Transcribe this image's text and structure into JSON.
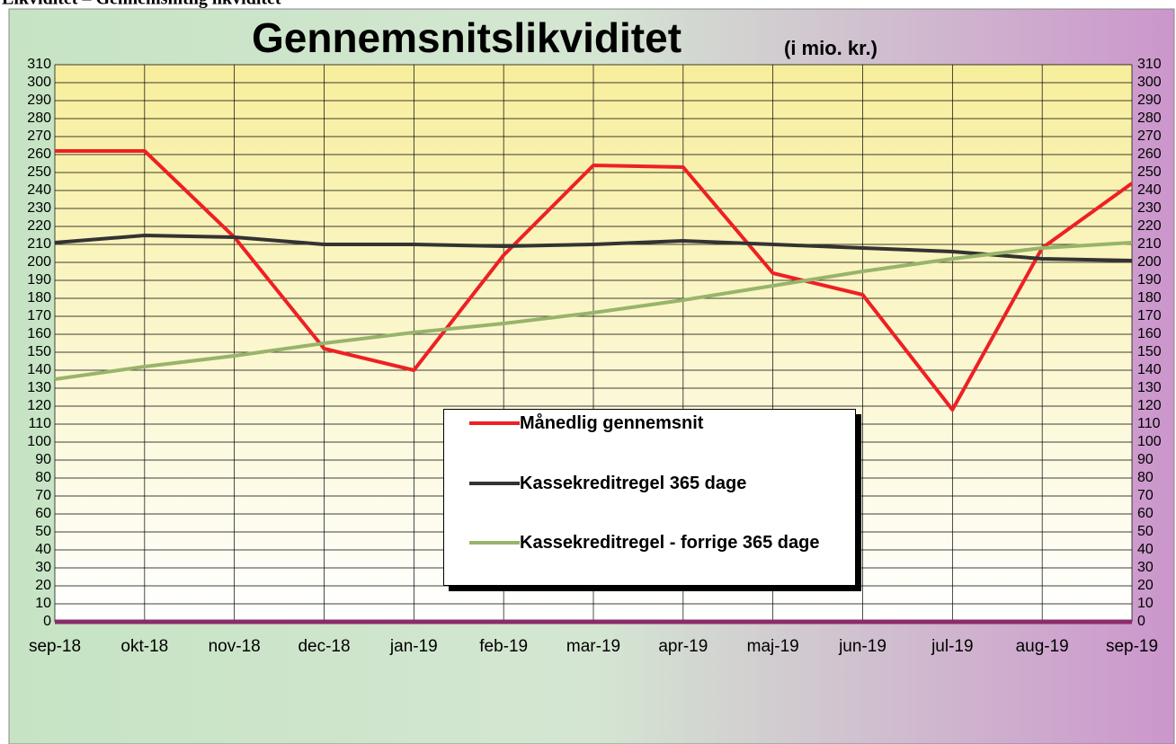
{
  "header": {
    "title": "Likviditet – Gennemsnitlig likviditet"
  },
  "chart_data": {
    "type": "line",
    "title": "Gennemsnitslikviditet",
    "subtitle": "(i mio. kr.)",
    "categories": [
      "sep-18",
      "okt-18",
      "nov-18",
      "dec-18",
      "jan-19",
      "feb-19",
      "mar-19",
      "apr-19",
      "maj-19",
      "jun-19",
      "jul-19",
      "aug-19",
      "sep-19"
    ],
    "series": [
      {
        "name": "Månedlig gennemsnit",
        "color": "#ee2024",
        "values": [
          262,
          262,
          214,
          152,
          140,
          204,
          254,
          253,
          194,
          182,
          118,
          208,
          244
        ]
      },
      {
        "name": "Kassekreditregel  365 dage",
        "color": "#333333",
        "values": [
          211,
          215,
          214,
          210,
          210,
          209,
          210,
          212,
          210,
          208,
          206,
          202,
          201
        ]
      },
      {
        "name": "Kassekreditregel - forrige 365 dage",
        "color": "#98b46a",
        "values": [
          135,
          142,
          148,
          155,
          161,
          166,
          172,
          179,
          187,
          195,
          202,
          208,
          211
        ]
      }
    ],
    "ylim": [
      0,
      310
    ],
    "yticks": [
      0,
      10,
      20,
      30,
      40,
      50,
      60,
      70,
      80,
      90,
      100,
      110,
      120,
      130,
      140,
      150,
      160,
      170,
      180,
      190,
      200,
      210,
      220,
      230,
      240,
      250,
      260,
      270,
      280,
      290,
      300,
      310
    ],
    "grid": true
  }
}
